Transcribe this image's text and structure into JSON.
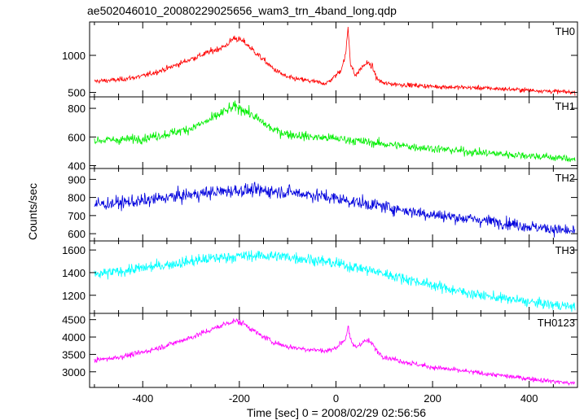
{
  "chart_data": {
    "type": "line",
    "title": "ae502046010_20080229025656_wam3_trn_4band_long.qdp",
    "xlabel": "Time [sec] 0 = 2008/02/29 02:56:56",
    "ylabel": "Counts/sec",
    "xlim": [
      -510,
      500
    ],
    "x_ticks": [
      -400,
      -200,
      0,
      200,
      400
    ],
    "grid": false,
    "panels": [
      {
        "name": "TH0",
        "color": "#ff0000",
        "ylim": [
          440,
          1450
        ],
        "y_ticks": [
          500,
          1000
        ],
        "x": [
          -500,
          -450,
          -400,
          -350,
          -300,
          -260,
          -230,
          -210,
          -190,
          -160,
          -130,
          -100,
          -60,
          -20,
          -5,
          10,
          20,
          25,
          30,
          40,
          55,
          65,
          75,
          85,
          100,
          150,
          200,
          300,
          400,
          495
        ],
        "values": [
          650,
          670,
          720,
          820,
          950,
          1050,
          1120,
          1240,
          1180,
          1000,
          820,
          700,
          660,
          620,
          700,
          800,
          1000,
          1380,
          900,
          720,
          850,
          900,
          850,
          680,
          620,
          600,
          580,
          560,
          530,
          500
        ]
      },
      {
        "name": "TH1",
        "color": "#00ee00",
        "ylim": [
          380,
          880
        ],
        "y_ticks": [
          400,
          600,
          800
        ],
        "x": [
          -500,
          -450,
          -400,
          -350,
          -300,
          -260,
          -230,
          -210,
          -190,
          -160,
          -130,
          -100,
          -50,
          0,
          50,
          100,
          200,
          300,
          400,
          495
        ],
        "values": [
          575,
          580,
          590,
          620,
          660,
          720,
          780,
          810,
          790,
          720,
          650,
          620,
          600,
          590,
          570,
          550,
          520,
          490,
          470,
          445
        ]
      },
      {
        "name": "TH2",
        "color": "#0000dd",
        "ylim": [
          560,
          960
        ],
        "y_ticks": [
          600,
          700,
          800,
          900
        ],
        "x": [
          -500,
          -450,
          -400,
          -350,
          -300,
          -250,
          -200,
          -150,
          -100,
          -50,
          0,
          50,
          100,
          150,
          200,
          250,
          300,
          350,
          400,
          450,
          495
        ],
        "values": [
          760,
          770,
          780,
          800,
          815,
          830,
          840,
          838,
          830,
          815,
          795,
          770,
          750,
          725,
          705,
          690,
          675,
          660,
          640,
          625,
          610
        ]
      },
      {
        "name": "TH3",
        "color": "#00ffff",
        "ylim": [
          1040,
          1680
        ],
        "y_ticks": [
          1200,
          1400,
          1600
        ],
        "x": [
          -500,
          -450,
          -400,
          -350,
          -300,
          -250,
          -200,
          -150,
          -100,
          -50,
          0,
          50,
          100,
          150,
          200,
          250,
          300,
          350,
          400,
          450,
          495
        ],
        "values": [
          1380,
          1410,
          1440,
          1470,
          1500,
          1530,
          1545,
          1550,
          1540,
          1515,
          1480,
          1440,
          1390,
          1340,
          1290,
          1240,
          1200,
          1170,
          1140,
          1115,
          1100
        ]
      },
      {
        "name": "TH0123",
        "color": "#ff00ff",
        "ylim": [
          2550,
          4680
        ],
        "y_ticks": [
          3000,
          3500,
          4000,
          4500
        ],
        "x": [
          -500,
          -450,
          -400,
          -350,
          -300,
          -260,
          -230,
          -210,
          -190,
          -160,
          -130,
          -100,
          -60,
          -20,
          -5,
          10,
          20,
          25,
          30,
          40,
          55,
          65,
          75,
          85,
          100,
          150,
          200,
          300,
          400,
          495
        ],
        "values": [
          3330,
          3420,
          3560,
          3760,
          3990,
          4200,
          4370,
          4470,
          4380,
          4080,
          3860,
          3720,
          3650,
          3600,
          3650,
          3820,
          3950,
          4300,
          3900,
          3700,
          3850,
          3900,
          3800,
          3600,
          3430,
          3260,
          3130,
          2960,
          2800,
          2660
        ]
      }
    ]
  }
}
